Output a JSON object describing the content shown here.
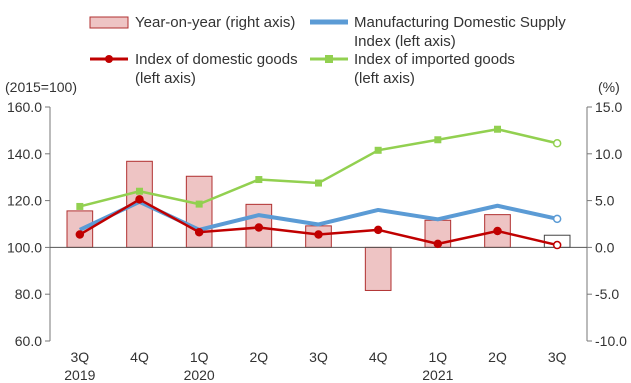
{
  "chart_data": {
    "type": "bar+line",
    "categories": [
      "3Q",
      "4Q",
      "1Q",
      "2Q",
      "3Q",
      "4Q",
      "1Q",
      "2Q",
      "3Q"
    ],
    "years": [
      "2019",
      "",
      "2020",
      "",
      "",
      "",
      "2021",
      "",
      ""
    ],
    "left_unit": "(2015=100)",
    "right_unit": "(%)",
    "left_axis": {
      "min": 60,
      "max": 160,
      "ticks": [
        "160.0",
        "140.0",
        "120.0",
        "100.0",
        "80.0",
        "60.0"
      ]
    },
    "right_axis": {
      "min": -10,
      "max": 15,
      "ticks": [
        "15.0",
        "10.0",
        "5.0",
        "0.0",
        "-5.0",
        "-10.0"
      ]
    },
    "bars": {
      "name": "Year-on-year (right axis)",
      "axis": "right",
      "color": "#eec4c4",
      "border": "#b03030",
      "values": [
        3.9,
        9.2,
        7.6,
        4.6,
        2.3,
        -4.6,
        2.9,
        3.5,
        1.3
      ]
    },
    "series": [
      {
        "name": "Manufacturing Domestic Supply Index (left axis)",
        "name_lines": [
          "Manufacturing Domestic Supply",
          "Index (left axis)"
        ],
        "axis": "left",
        "color": "#5b9bd5",
        "marker": "none",
        "values": [
          107.5,
          119.5,
          107.5,
          113.8,
          109.8,
          116.0,
          112.0,
          117.8,
          112.2
        ]
      },
      {
        "name": "Index of domestic goods (left axis)",
        "name_lines": [
          "Index of domestic goods",
          "(left axis)"
        ],
        "axis": "left",
        "color": "#c00000",
        "marker": "circle",
        "values": [
          105.5,
          120.5,
          106.5,
          108.5,
          105.5,
          107.5,
          101.5,
          107.0,
          101.0
        ]
      },
      {
        "name": "Index of imported goods (left axis)",
        "name_lines": [
          "Index of imported goods",
          "(left axis)"
        ],
        "axis": "left",
        "color": "#92d050",
        "marker": "square",
        "values": [
          117.5,
          124.0,
          118.5,
          129.0,
          127.5,
          141.5,
          146.0,
          150.5,
          144.5
        ]
      }
    ],
    "grid": false,
    "legend_position": "top"
  }
}
